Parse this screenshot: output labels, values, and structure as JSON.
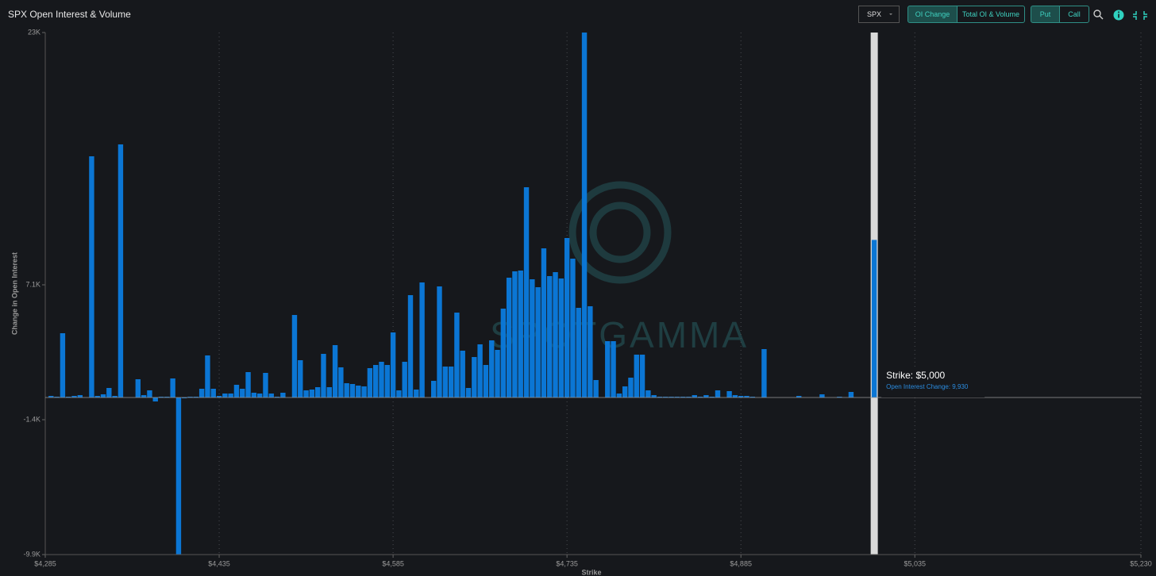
{
  "header": {
    "title": "SPX Open Interest & Volume",
    "symbol": "SPX",
    "tabs": [
      "OI Change",
      "Total OI & Volume"
    ],
    "sides": [
      "Put",
      "Call"
    ]
  },
  "chart_data": {
    "type": "bar",
    "watermark": "SPOTGAMMA",
    "x_label": "Strike",
    "y_label": "Change in Open Interest",
    "color": "#0b76d4",
    "xlim": [
      4285,
      5230
    ],
    "xticks": [
      {
        "value": 4285,
        "label": "$4,285"
      },
      {
        "value": 4435,
        "label": "$4,435"
      },
      {
        "value": 4585,
        "label": "$4,585"
      },
      {
        "value": 4735,
        "label": "$4,735"
      },
      {
        "value": 4885,
        "label": "$4,885"
      },
      {
        "value": 5035,
        "label": "$5,035"
      },
      {
        "value": 5230,
        "label": "$5,230"
      }
    ],
    "ylim": [
      -9900,
      23000
    ],
    "yticks": [
      {
        "value": 23000,
        "label": "23K"
      },
      {
        "value": 7100,
        "label": "7.1K"
      },
      {
        "value": -1400,
        "label": "-1.4K"
      },
      {
        "value": -9900,
        "label": "-9.9K"
      }
    ],
    "x": [
      4290,
      4295,
      4300,
      4305,
      4310,
      4315,
      4320,
      4325,
      4330,
      4335,
      4340,
      4345,
      4350,
      4355,
      4360,
      4365,
      4370,
      4375,
      4380,
      4385,
      4390,
      4395,
      4400,
      4405,
      4410,
      4415,
      4420,
      4425,
      4430,
      4435,
      4440,
      4445,
      4450,
      4455,
      4460,
      4465,
      4470,
      4475,
      4480,
      4485,
      4490,
      4495,
      4500,
      4505,
      4510,
      4515,
      4520,
      4525,
      4530,
      4535,
      4540,
      4545,
      4550,
      4555,
      4560,
      4565,
      4570,
      4575,
      4580,
      4585,
      4590,
      4595,
      4600,
      4605,
      4610,
      4615,
      4620,
      4625,
      4630,
      4635,
      4640,
      4645,
      4650,
      4655,
      4660,
      4665,
      4670,
      4675,
      4680,
      4685,
      4690,
      4695,
      4700,
      4705,
      4710,
      4715,
      4720,
      4725,
      4730,
      4735,
      4740,
      4745,
      4750,
      4755,
      4760,
      4765,
      4770,
      4775,
      4780,
      4785,
      4790,
      4795,
      4800,
      4805,
      4810,
      4815,
      4820,
      4825,
      4830,
      4835,
      4840,
      4845,
      4850,
      4855,
      4860,
      4865,
      4870,
      4875,
      4880,
      4885,
      4890,
      4895,
      4900,
      4905,
      4910,
      4915,
      4920,
      4925,
      4930,
      4935,
      4940,
      4945,
      4950,
      4955,
      4960,
      4965,
      4970,
      4975,
      4980,
      4985,
      4990,
      4995,
      5000
    ],
    "values": [
      100,
      50,
      4050,
      50,
      100,
      150,
      0,
      15200,
      100,
      200,
      600,
      100,
      15950,
      0,
      0,
      1150,
      150,
      450,
      -250,
      50,
      50,
      1200,
      -9900,
      -50,
      50,
      50,
      550,
      2650,
      550,
      100,
      250,
      250,
      800,
      550,
      1600,
      300,
      250,
      1550,
      250,
      50,
      300,
      0,
      5200,
      2350,
      450,
      500,
      650,
      2750,
      650,
      3300,
      1900,
      900,
      850,
      750,
      700,
      1850,
      2050,
      2250,
      2050,
      4100,
      450,
      2250,
      6450,
      500,
      7250,
      0,
      1050,
      7000,
      1950,
      1950,
      5350,
      2950,
      600,
      2550,
      3350,
      2050,
      3600,
      3000,
      5600,
      7550,
      7950,
      8000,
      13250,
      7450,
      6950,
      9400,
      7650,
      7900,
      7500,
      10050,
      8750,
      5650,
      23000,
      5750,
      1100,
      0,
      3550,
      3550,
      250,
      700,
      1250,
      2700,
      2700,
      450,
      150,
      50,
      50,
      50,
      50,
      50,
      50,
      150,
      50,
      150,
      50,
      450,
      0,
      400,
      150,
      100,
      100,
      50,
      0,
      3050,
      0,
      0,
      0,
      0,
      0,
      100,
      0,
      0,
      0,
      200,
      0,
      0,
      50,
      0,
      350,
      0,
      0,
      0,
      9930
    ],
    "tooltip": {
      "title": "Strike: $5,000",
      "text": "Open Interest Change: 9,930"
    }
  }
}
